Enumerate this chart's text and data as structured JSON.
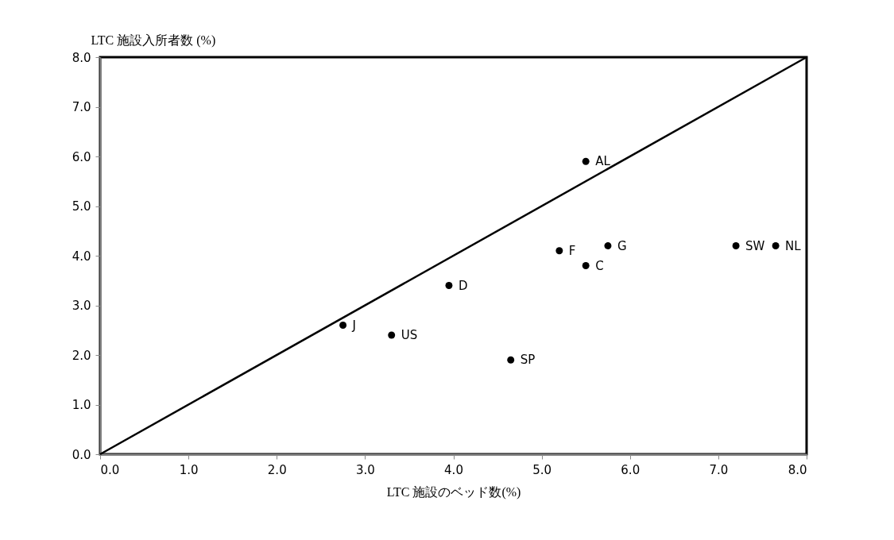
{
  "chart_data": {
    "type": "scatter",
    "xlabel": "LTC 施設のベッド数(%)",
    "ylabel": "LTC 施設入所者数 (%)",
    "xlim": [
      0,
      8
    ],
    "ylim": [
      0,
      8
    ],
    "xticks": [
      {
        "value": 0,
        "label": "0.0"
      },
      {
        "value": 1,
        "label": "1.0"
      },
      {
        "value": 2,
        "label": "2.0"
      },
      {
        "value": 3,
        "label": "3.0"
      },
      {
        "value": 4,
        "label": "4.0"
      },
      {
        "value": 5,
        "label": "5.0"
      },
      {
        "value": 6,
        "label": "6.0"
      },
      {
        "value": 7,
        "label": "7.0"
      },
      {
        "value": 8,
        "label": "8.0"
      }
    ],
    "yticks": [
      {
        "value": 0,
        "label": "0.0"
      },
      {
        "value": 1,
        "label": "1.0"
      },
      {
        "value": 2,
        "label": "2.0"
      },
      {
        "value": 3,
        "label": "3.0"
      },
      {
        "value": 4,
        "label": "4.0"
      },
      {
        "value": 5,
        "label": "5.0"
      },
      {
        "value": 6,
        "label": "6.0"
      },
      {
        "value": 7,
        "label": "7.0"
      },
      {
        "value": 8,
        "label": "8.0"
      }
    ],
    "grid": false,
    "series": [
      {
        "marker": "circle",
        "color": "#000000",
        "x": [
          2.75,
          3.3,
          3.95,
          4.65,
          5.2,
          5.5,
          5.5,
          5.75,
          7.2,
          7.65
        ],
        "values": [
          2.6,
          2.4,
          3.4,
          1.9,
          4.1,
          3.8,
          5.9,
          4.2,
          4.2,
          4.2
        ]
      },
      {
        "type": "line",
        "marker": "none",
        "color": "#000000",
        "x": [
          0,
          8
        ],
        "values": [
          0,
          8
        ]
      }
    ],
    "annotations": [
      {
        "text": "J",
        "x": 2.75,
        "y": 2.6
      },
      {
        "text": "US",
        "x": 3.3,
        "y": 2.4
      },
      {
        "text": "D",
        "x": 3.95,
        "y": 3.4
      },
      {
        "text": "SP",
        "x": 4.65,
        "y": 1.9
      },
      {
        "text": "F",
        "x": 5.2,
        "y": 4.1
      },
      {
        "text": "C",
        "x": 5.5,
        "y": 3.8
      },
      {
        "text": "AL",
        "x": 5.5,
        "y": 5.9
      },
      {
        "text": "G",
        "x": 5.75,
        "y": 4.2
      },
      {
        "text": "SW",
        "x": 7.2,
        "y": 4.2
      },
      {
        "text": "NL",
        "x": 7.65,
        "y": 4.2
      }
    ]
  }
}
